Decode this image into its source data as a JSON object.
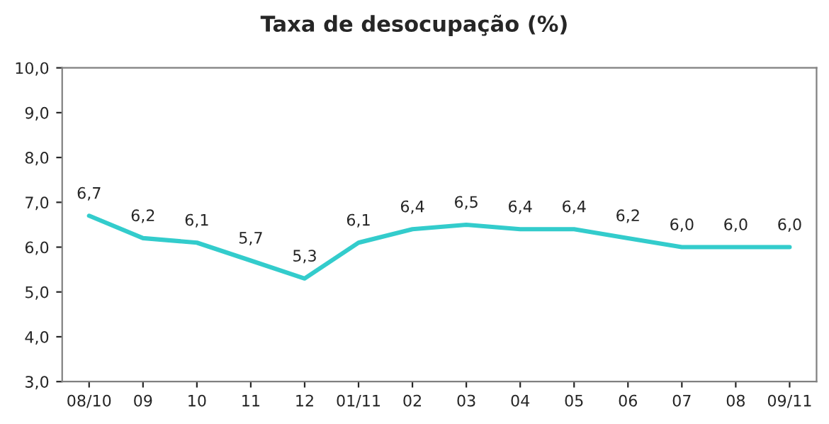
{
  "chart_data": {
    "type": "line",
    "title": "Taxa de desocupação (%)",
    "categories": [
      "08/10",
      "09",
      "10",
      "11",
      "12",
      "01/11",
      "02",
      "03",
      "04",
      "05",
      "06",
      "07",
      "08",
      "09/11"
    ],
    "values": [
      6.7,
      6.2,
      6.1,
      5.7,
      5.3,
      6.1,
      6.4,
      6.5,
      6.4,
      6.4,
      6.2,
      6.0,
      6.0,
      6.0
    ],
    "value_labels": [
      "6,7",
      "6,2",
      "6,1",
      "5,7",
      "5,3",
      "6,1",
      "6,4",
      "6,5",
      "6,4",
      "6,4",
      "6,2",
      "6,0",
      "6,0",
      "6,0"
    ],
    "color": "#33cccc",
    "ylim": [
      3,
      10
    ],
    "yticks": [
      {
        "value": 3,
        "label": "3,0"
      },
      {
        "value": 4,
        "label": "4,0"
      },
      {
        "value": 5,
        "label": "5,0"
      },
      {
        "value": 6,
        "label": "6,0"
      },
      {
        "value": 7,
        "label": "7,0"
      },
      {
        "value": 8,
        "label": "8,0"
      },
      {
        "value": 9,
        "label": "9,0"
      },
      {
        "value": 10,
        "label": "10,0"
      }
    ],
    "grid": false,
    "marker": "none",
    "line_style": "solid",
    "legend": false
  }
}
